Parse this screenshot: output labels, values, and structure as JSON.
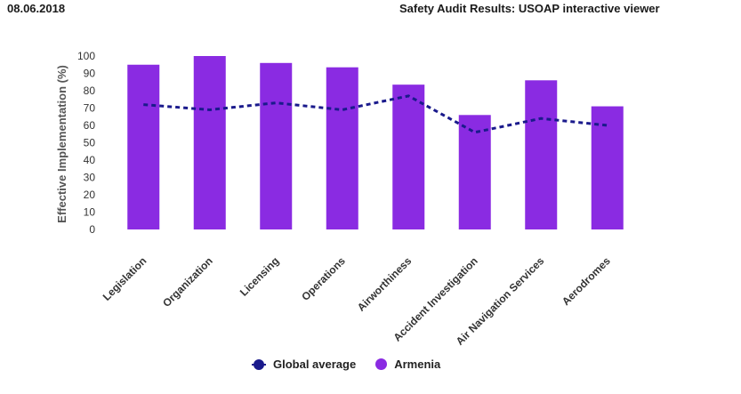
{
  "header": {
    "date": "08.06.2018",
    "title": "Safety Audit Results: USOAP interactive viewer"
  },
  "chart_data": {
    "type": "bar",
    "ylabel": "Effective Implementation (%)",
    "ylim": [
      0,
      100
    ],
    "yticks": [
      0,
      10,
      20,
      30,
      40,
      50,
      60,
      70,
      80,
      90,
      100
    ],
    "grid": false,
    "legend_position": "bottom-center",
    "categories": [
      "Legislation",
      "Organization",
      "Licensing",
      "Operations",
      "Airworthiness",
      "Accident Investigation",
      "Air Navigation Services",
      "Aerodromes"
    ],
    "series": [
      {
        "name": "Global average",
        "type": "line",
        "style": "dashed",
        "color": "#1a1a8c",
        "values": [
          72,
          69,
          73,
          69,
          77,
          56,
          64,
          60
        ]
      },
      {
        "name": "Armenia",
        "type": "bar",
        "color": "#8a2be2",
        "values": [
          95,
          100,
          96,
          93.5,
          83.5,
          66,
          86,
          71
        ]
      }
    ]
  },
  "legend": {
    "items": [
      {
        "label": "Global average",
        "color": "#1a1a8c"
      },
      {
        "label": "Armenia",
        "color": "#8a2be2"
      }
    ]
  }
}
